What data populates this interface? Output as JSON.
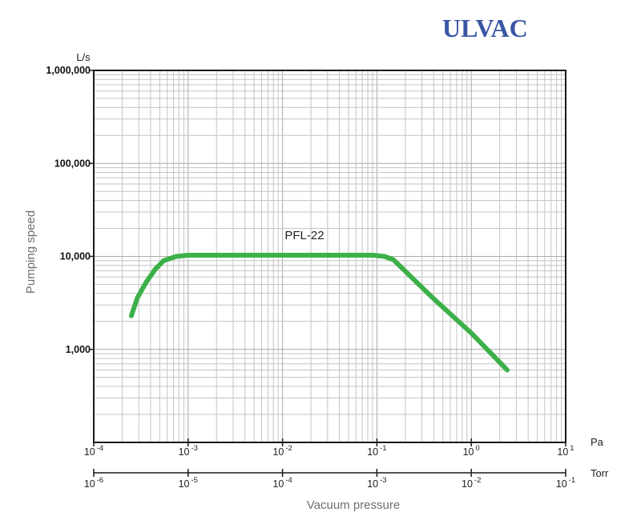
{
  "logo": {
    "text": "ULVAC",
    "color": "#3a56a4"
  },
  "chart_data": {
    "type": "line",
    "title": "",
    "ylabel": "Pumping speed",
    "xlabel": "Vacuum pressure",
    "y_unit": "L/s",
    "y_scale": "log",
    "ylim": [
      100,
      1000000
    ],
    "y_ticks": [
      {
        "value": 1000,
        "label": "1,000"
      },
      {
        "value": 10000,
        "label": "10,000"
      },
      {
        "value": 100000,
        "label": "100,000"
      },
      {
        "value": 1000000,
        "label": "1,000,000"
      }
    ],
    "x_axes": [
      {
        "unit": "Pa",
        "scale": "log",
        "range": [
          0.0001,
          10
        ],
        "ticks": [
          {
            "value": 0.0001,
            "base": "10",
            "exp": "-4"
          },
          {
            "value": 0.001,
            "base": "10",
            "exp": "-3"
          },
          {
            "value": 0.01,
            "base": "10",
            "exp": "-2"
          },
          {
            "value": 0.1,
            "base": "10",
            "exp": "-1"
          },
          {
            "value": 1,
            "base": "10",
            "exp": "0"
          },
          {
            "value": 10,
            "base": "10",
            "exp": "1"
          }
        ]
      },
      {
        "unit": "Torr",
        "scale": "log",
        "range": [
          1e-06,
          0.1
        ],
        "ticks": [
          {
            "value": 1e-06,
            "base": "10",
            "exp": "-6"
          },
          {
            "value": 1e-05,
            "base": "10",
            "exp": "-5"
          },
          {
            "value": 0.0001,
            "base": "10",
            "exp": "-4"
          },
          {
            "value": 0.001,
            "base": "10",
            "exp": "-3"
          },
          {
            "value": 0.01,
            "base": "10",
            "exp": "-2"
          },
          {
            "value": 0.1,
            "base": "10",
            "exp": "-1"
          }
        ]
      }
    ],
    "grid": true,
    "series": [
      {
        "name": "PFL-22",
        "color": "#3db049",
        "points": [
          {
            "x": 0.00025,
            "y": 2300
          },
          {
            "x": 0.00029,
            "y": 3600
          },
          {
            "x": 0.00036,
            "y": 5300
          },
          {
            "x": 0.00045,
            "y": 7300
          },
          {
            "x": 0.00055,
            "y": 9000
          },
          {
            "x": 0.00075,
            "y": 10000
          },
          {
            "x": 0.001,
            "y": 10300
          },
          {
            "x": 0.01,
            "y": 10300
          },
          {
            "x": 0.09,
            "y": 10300
          },
          {
            "x": 0.12,
            "y": 10000
          },
          {
            "x": 0.15,
            "y": 9200
          },
          {
            "x": 0.4,
            "y": 3500
          },
          {
            "x": 1.0,
            "y": 1500
          },
          {
            "x": 2.4,
            "y": 600
          }
        ]
      }
    ]
  }
}
